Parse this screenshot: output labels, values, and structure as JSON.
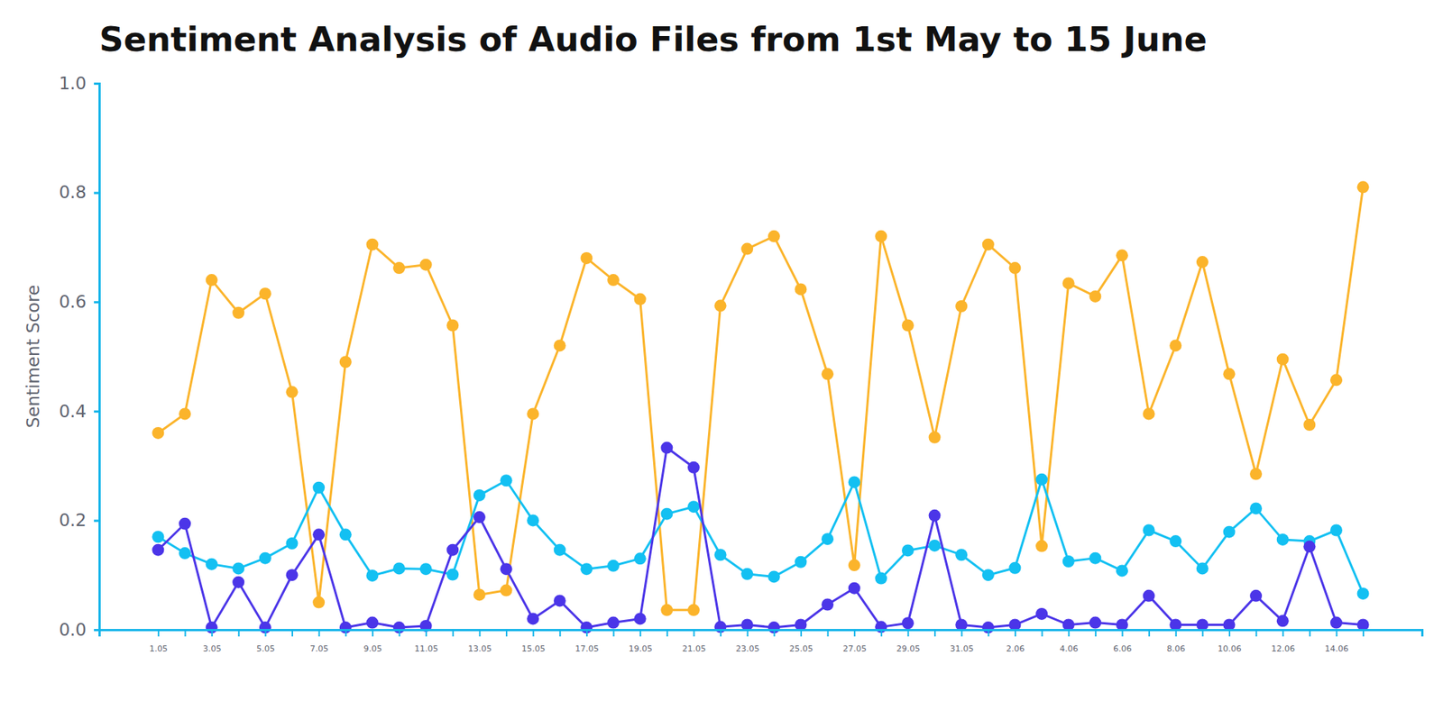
{
  "chart_data": {
    "type": "line",
    "title": "Sentiment Analysis of Audio Files from 1st May to 15 June",
    "y_label": "Sentiment Score",
    "categories": [
      "1.05",
      null,
      "3.05",
      null,
      "5.05",
      null,
      "7.05",
      null,
      "9.05",
      null,
      "11.05",
      null,
      "13.05",
      null,
      "15.05",
      null,
      "17.05",
      null,
      "19.05",
      null,
      "21.05",
      null,
      "23.05",
      null,
      "25.05",
      null,
      "27.05",
      null,
      "29.05",
      null,
      "31.05",
      null,
      "2.06",
      null,
      "4.06",
      null,
      "6.06",
      null,
      "8.06",
      null,
      "10.06",
      null,
      "12.06",
      null,
      "14.06",
      null
    ],
    "series": [
      {
        "color": "#fbb42b",
        "values": [
          0.36,
          0.395,
          0.64,
          0.58,
          0.615,
          0.435,
          0.05,
          0.49,
          0.705,
          0.662,
          0.668,
          0.557,
          0.064,
          0.072,
          0.395,
          0.52,
          0.68,
          0.64,
          0.605,
          0.036,
          0.036,
          0.593,
          0.697,
          0.72,
          0.623,
          0.468,
          0.118,
          0.72,
          0.557,
          0.352,
          0.592,
          0.705,
          0.662,
          0.153,
          0.634,
          0.61,
          0.685,
          0.395,
          0.52,
          0.673,
          0.468,
          0.285,
          0.495,
          0.375,
          0.457,
          0.81
        ]
      },
      {
        "color": "#13c0f2",
        "values": [
          0.17,
          0.14,
          0.12,
          0.112,
          0.131,
          0.158,
          0.26,
          0.174,
          0.099,
          0.112,
          0.111,
          0.101,
          0.246,
          0.273,
          0.2,
          0.146,
          0.111,
          0.117,
          0.13,
          0.212,
          0.225,
          0.137,
          0.102,
          0.097,
          0.124,
          0.166,
          0.27,
          0.094,
          0.145,
          0.154,
          0.137,
          0.1,
          0.113,
          0.275,
          0.125,
          0.131,
          0.108,
          0.182,
          0.162,
          0.112,
          0.179,
          0.222,
          0.165,
          0.162,
          0.182,
          0.066
        ]
      },
      {
        "color": "#4b35e8",
        "values": [
          0.146,
          0.194,
          0.004,
          0.087,
          0.004,
          0.1,
          0.174,
          0.004,
          0.013,
          0.004,
          0.007,
          0.146,
          0.206,
          0.111,
          0.02,
          0.053,
          0.004,
          0.013,
          0.02,
          0.333,
          0.297,
          0.005,
          0.009,
          0.004,
          0.009,
          0.046,
          0.076,
          0.005,
          0.012,
          0.209,
          0.009,
          0.004,
          0.009,
          0.029,
          0.009,
          0.013,
          0.009,
          0.062,
          0.009,
          0.009,
          0.009,
          0.062,
          0.016,
          0.152,
          0.013,
          0.009
        ]
      }
    ],
    "ylim": [
      0,
      1
    ],
    "yticks": [
      {
        "value": 0,
        "label": "0.0"
      },
      0.2,
      0.4,
      0.6,
      0.8,
      {
        "value": 1,
        "label": "1.0"
      }
    ],
    "grid": false,
    "marker": "circle",
    "line_style": "solid"
  }
}
